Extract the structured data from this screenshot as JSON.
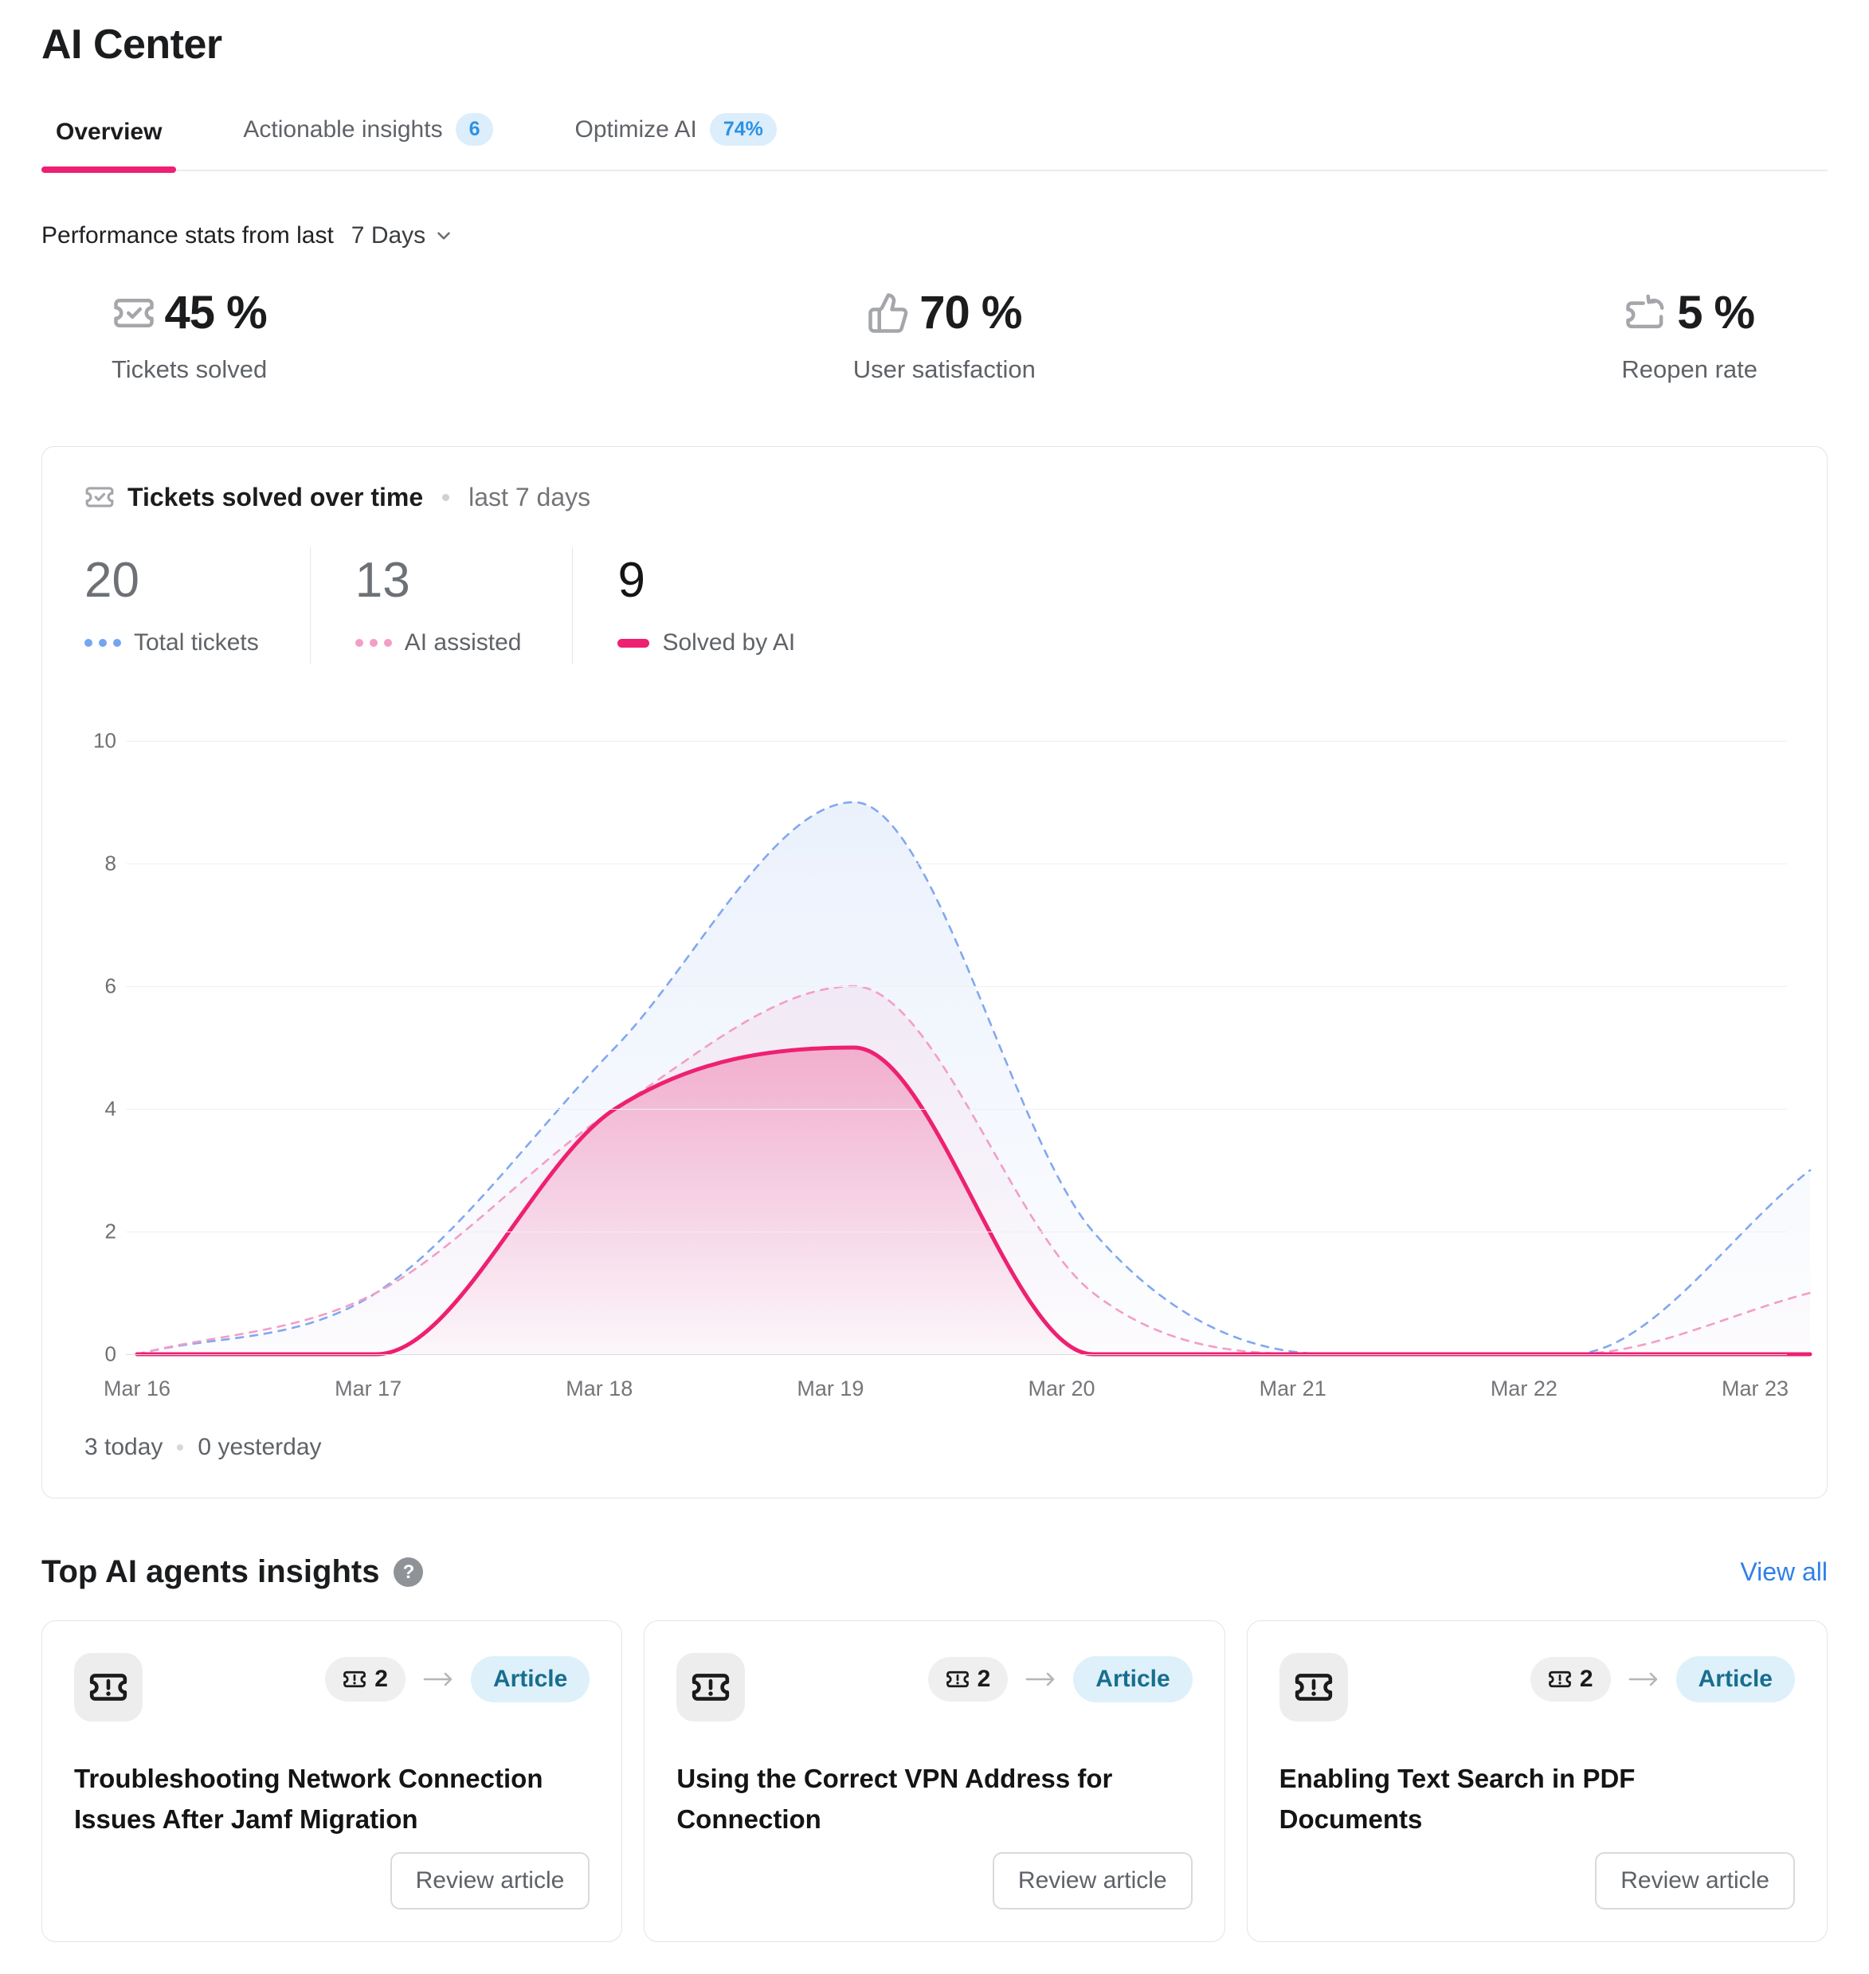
{
  "page": {
    "title": "AI Center"
  },
  "tabs": [
    {
      "label": "Overview",
      "active": true
    },
    {
      "label": "Actionable insights",
      "badge": "6"
    },
    {
      "label": "Optimize AI",
      "badge": "74%"
    }
  ],
  "performance": {
    "label": "Performance stats from last",
    "range": "7 Days",
    "stats": [
      {
        "icon": "ticket-check-icon",
        "value": "45 %",
        "label": "Tickets solved"
      },
      {
        "icon": "thumbs-up-icon",
        "value": "70 %",
        "label": "User satisfaction"
      },
      {
        "icon": "ticket-reopen-icon",
        "value": "5 %",
        "label": "Reopen rate"
      }
    ]
  },
  "chart_card": {
    "icon": "ticket-check-icon",
    "title": "Tickets solved over time",
    "subtitle": "last 7 days",
    "metrics": [
      {
        "value": "20",
        "label": "Total tickets",
        "marker": "blue-dotted"
      },
      {
        "value": "13",
        "label": "AI assisted",
        "marker": "pink-dotted"
      },
      {
        "value": "9",
        "label": "Solved by AI",
        "marker": "pink-solid"
      }
    ],
    "footer": {
      "today": "3 today",
      "yesterday": "0 yesterday"
    }
  },
  "chart_data": {
    "type": "area",
    "title": "Tickets solved over time",
    "x_labels": [
      "Mar 16",
      "Mar 17",
      "Mar 18",
      "Mar 19",
      "Mar 20",
      "Mar 21",
      "Mar 22",
      "Mar 23"
    ],
    "ylim": [
      0,
      10
    ],
    "yticks": [
      0,
      2,
      4,
      6,
      8,
      10
    ],
    "grid": true,
    "legend_position": "top-left",
    "series": [
      {
        "name": "Total tickets",
        "style": "dashed",
        "color": "#82a8ef",
        "values": [
          0,
          1,
          5,
          9,
          2,
          0,
          0,
          3
        ]
      },
      {
        "name": "AI assisted",
        "style": "dashed",
        "color": "#f29ec7",
        "values": [
          0,
          1,
          4,
          6,
          1,
          0,
          0,
          1
        ]
      },
      {
        "name": "Solved by AI",
        "style": "solid",
        "color": "#ee2071",
        "values": [
          0,
          0,
          4,
          5,
          0,
          0,
          0,
          0
        ]
      }
    ]
  },
  "insights": {
    "title": "Top AI agents insights",
    "help_icon": "question-icon",
    "view_all": "View all",
    "cards": [
      {
        "icon": "ticket-alert-icon",
        "ticket_count": "2",
        "tag": "Article",
        "title": "Troubleshooting Network Connection Issues After Jamf Migration",
        "button": "Review article"
      },
      {
        "icon": "ticket-alert-icon",
        "ticket_count": "2",
        "tag": "Article",
        "title": "Using the Correct VPN Address for Connection",
        "button": "Review article"
      },
      {
        "icon": "ticket-alert-icon",
        "ticket_count": "2",
        "tag": "Article",
        "title": "Enabling Text Search in PDF Documents",
        "button": "Review article"
      }
    ]
  },
  "colors": {
    "accent_pink": "#ee2071",
    "total_line_blue": "#82a8ef",
    "assisted_line_pink": "#f29ec7",
    "badge_blue_bg": "#dcedfb",
    "badge_blue_text": "#2b92e4",
    "link_blue": "#2f80e8",
    "article_tag_bg": "#def0fa",
    "article_tag_text": "#186e8e"
  }
}
